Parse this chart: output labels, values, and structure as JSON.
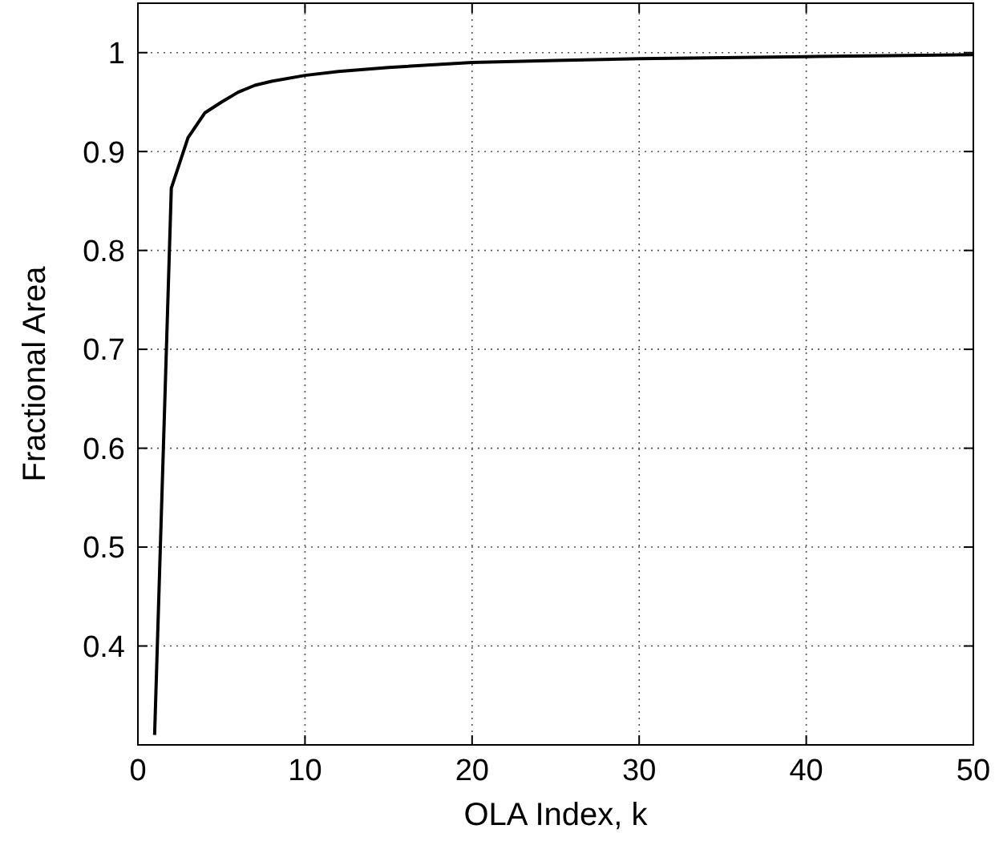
{
  "chart_data": {
    "type": "line",
    "xlabel": "OLA Index, k",
    "ylabel": "Fractional Area",
    "x": [
      1,
      2,
      3,
      4,
      5,
      6,
      7,
      8,
      10,
      12,
      15,
      20,
      25,
      30,
      35,
      40,
      45,
      50
    ],
    "series": [
      {
        "color": "#000000",
        "values": [
          0.31,
          0.863,
          0.914,
          0.939,
          0.95,
          0.96,
          0.967,
          0.971,
          0.977,
          0.981,
          0.985,
          0.99,
          0.992,
          0.994,
          0.995,
          0.996,
          0.997,
          0.998
        ]
      }
    ],
    "xlim": [
      0,
      50
    ],
    "xticks": [
      0,
      10,
      20,
      30,
      40,
      50
    ],
    "ylim": [
      0.3,
      1.05
    ],
    "yticks": [
      0.4,
      0.5,
      0.6,
      0.7,
      0.8,
      0.9,
      1
    ],
    "grid": true,
    "marker": "none",
    "line_style": "solid"
  }
}
